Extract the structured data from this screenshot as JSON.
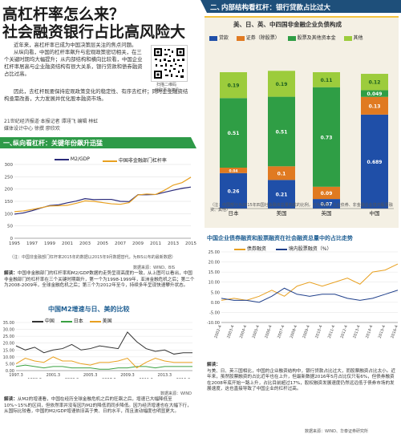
{
  "headline": {
    "line1": "高杠杆率怎么来？",
    "line2": "社会融资银行占比高风险大"
  },
  "intro": {
    "p1": "近年来，高杠杆率已成为中国决策层关注的焦点问题。",
    "p2": "从纵向看，中国的杠杆率飙升与宏观政策密切相关，在三个关键时期均大幅提升；从内部结构和横向比较看，中国企业杠杆率居高与企业融资结构有很大关系，银行贷款和债券融资占比过高。",
    "p3": "因此，去杠杆既要保持宏观政策变化的稳定性、有序去杠杆；同时企业融资结构亟需改善，大力发展并优化股本融资市场。",
    "byline1": "21世纪经济报道·本报记者 谭翊飞 编辑 林虹",
    "byline2": "媒体设计中心 徐撰 廖欣欢",
    "qr_caption1": "扫描二维码",
    "qr_caption2": "获取更多资讯"
  },
  "section1": {
    "number": "一、",
    "title": "纵向看杠杆：关键年份飙升迅猛",
    "chart": {
      "legend": [
        "M2/GDP",
        "中国非金融部门杠杆率"
      ],
      "x_ticks": [
        "1995",
        "1997",
        "1999",
        "2001",
        "2003",
        "2005",
        "2007",
        "2009",
        "2011",
        "2013",
        "2015"
      ],
      "y_ticks": [
        "0",
        "50",
        "100",
        "150",
        "200",
        "250",
        "300"
      ],
      "note": "（注：中国非金融部门杠杆率2015年的数据以2015年9月数据替代，为BIS公布的最新数据）",
      "source": "数据来源：WIND、BIS"
    },
    "explain_label": "解读：",
    "explain": "中国非金融部门的杠杆率和M2/GDP数据的走势呈现高度的一致，从上图可以看出，中国非金融部门的杠杆率在三个关键时期飙升，第一个为1998-1999年，亚洲金融危机之后；第二个为2008-2009年，全球金融危机之后；第三个为2012年至今，持续多年呈现快速攀升状态。"
  },
  "section1b": {
    "title": "中国M2增速与日、美的比较",
    "legend": [
      "中国",
      "日本",
      "美国"
    ],
    "x_ticks": [
      "1997.3",
      "1999.3",
      "2001.3",
      "2003.3",
      "2005.3",
      "2007.3",
      "2009.3",
      "2011.3",
      "2013.3",
      "2015.3"
    ],
    "y_ticks": [
      "0.00",
      "5.00",
      "10.00",
      "15.00",
      "20.00",
      "25.00",
      "30.00",
      "35.00"
    ],
    "source": "数据来源：WIND",
    "explain_label": "解读：",
    "explain": "从M2的增速看，中国在经历全球金融危机之后的狂飙之后，增速已大幅降低至10%~15%的区间，但依然率并没有因为M2的降低而同步降低。因为经济增速也在大幅下行，从国际比较看，中国的M2/GDP增速依旧高于美、日的水平，而且波动幅度也明显更大。"
  },
  "section2": {
    "number": "二、",
    "title": "内部结构看杠杆：银行贷款占比过大",
    "chart_title": "美、日、英、中四国非金融企业负债构成",
    "legend": [
      "贷款",
      "证券（除股票）",
      "股票及其他资本金",
      "其他"
    ],
    "note": "（注：中国部分为2015年四国社会融资总量构成的比例，分为贷款、企业债券、非金融企业境内股票融资、其他）",
    "explain_label": "解读：",
    "explain": "与美、日、英三国相比，中国的企业融资结构中，银行贷款占比过大，而股票融资占比太小。近年来，虽然股票融资的占比近年也在上升，但最新数据2016年5月占比仅只有6%，但债券融资在2008年底开始一路上升，占比目前超过17%，股权融资发展速度仍然远远低于债券市场的发展速度，这也直接导致了中国企业的杠杆过高。"
  },
  "section2b": {
    "title": "中国企业债券融资和股票融资在社会融资总量中的占比走势",
    "legend": [
      "债券融资",
      "境内股票融资（%）"
    ],
    "x_ticks": [
      "2002-4",
      "2003-4",
      "2004-4",
      "2005-4",
      "2006-4",
      "2007-4",
      "2008-4",
      "2009-4",
      "2010-4",
      "2011-4",
      "2012-4",
      "2013-4",
      "2014-4",
      "2015-4",
      "2016-4"
    ],
    "y_ticks": [
      "-10.00",
      "-5.00",
      "0.00",
      "5.00",
      "10.00",
      "15.00",
      "20.00",
      "25.00"
    ],
    "source": "数据来源：WIND、华泰证券研究所"
  },
  "chart_data": [
    {
      "type": "line",
      "title": "",
      "x": [
        1995,
        1996,
        1997,
        1998,
        1999,
        2000,
        2001,
        2002,
        2003,
        2004,
        2005,
        2006,
        2007,
        2008,
        2009,
        2010,
        2011,
        2012,
        2013,
        2014,
        2015
      ],
      "series": [
        {
          "name": "M2/GDP",
          "values": [
            98,
            103,
            112,
            123,
            133,
            136,
            144,
            151,
            161,
            157,
            158,
            158,
            150,
            149,
            177,
            177,
            178,
            187,
            195,
            203,
            208
          ]
        },
        {
          "name": "中国非金融部门杠杆率",
          "values": [
            108,
            111,
            117,
            124,
            131,
            132,
            134,
            142,
            152,
            150,
            145,
            140,
            138,
            145,
            176,
            180,
            178,
            195,
            216,
            226,
            248
          ]
        }
      ],
      "ylim": [
        0,
        300
      ]
    },
    {
      "type": "line",
      "title": "中国M2增速与日、美的比较",
      "x": [
        "1997.3",
        "1998.3",
        "1999.3",
        "2000.3",
        "2001.3",
        "2002.3",
        "2003.3",
        "2004.3",
        "2005.3",
        "2006.3",
        "2007.3",
        "2008.3",
        "2009.3",
        "2010.3",
        "2011.3",
        "2012.3",
        "2013.3",
        "2014.3",
        "2015.3",
        "2016.3"
      ],
      "series": [
        {
          "name": "中国",
          "values": [
            18,
            15,
            17,
            13,
            15,
            16,
            19,
            15,
            16,
            18,
            17,
            16,
            28,
            21,
            16,
            14,
            15,
            12,
            13,
            13
          ]
        },
        {
          "name": "日本",
          "values": [
            3,
            4,
            3,
            2,
            3,
            3,
            2,
            2,
            2,
            1,
            1,
            2,
            2,
            3,
            3,
            2,
            3,
            3,
            3,
            3
          ]
        },
        {
          "name": "美国",
          "values": [
            5,
            9,
            7,
            6,
            10,
            7,
            7,
            5,
            4,
            6,
            6,
            7,
            9,
            2,
            6,
            9,
            7,
            6,
            6,
            6
          ]
        }
      ],
      "ylim": [
        0,
        35
      ]
    },
    {
      "type": "bar",
      "title": "美、日、英、中四国非金融企业负债构成",
      "categories": [
        "日本",
        "美国",
        "英国",
        "中国"
      ],
      "series": [
        {
          "name": "贷款",
          "values": [
            0.26,
            0.21,
            0.07,
            0.689
          ]
        },
        {
          "name": "证券（除股票）",
          "values": [
            0.04,
            0.1,
            0.09,
            0.13
          ]
        },
        {
          "name": "股票及其他资本金",
          "values": [
            0.51,
            0.51,
            0.73,
            0.049
          ]
        },
        {
          "name": "其他",
          "values": [
            0.19,
            0.19,
            0.11,
            0.12
          ]
        }
      ],
      "ylim": [
        0,
        1.2
      ]
    },
    {
      "type": "line",
      "title": "中国企业债券融资和股票融资在社会融资总量中的占比走势",
      "x": [
        "2002-4",
        "2003-4",
        "2004-4",
        "2005-4",
        "2006-4",
        "2007-4",
        "2008-4",
        "2009-4",
        "2010-4",
        "2011-4",
        "2012-4",
        "2013-4",
        "2014-4",
        "2015-4",
        "2016-4"
      ],
      "series": [
        {
          "name": "债券融资",
          "values": [
            1,
            2,
            1,
            3,
            6,
            3,
            8,
            10,
            8,
            10,
            12,
            9,
            15,
            16,
            19
          ]
        },
        {
          "name": "境内股票融资（%）",
          "values": [
            2,
            1,
            1,
            0,
            3,
            7,
            4,
            3,
            4,
            4,
            2,
            1,
            2,
            4,
            6
          ]
        }
      ],
      "ylim": [
        -10,
        25
      ]
    }
  ],
  "colors": {
    "banner": "#1e4f7a",
    "green_banner": "#2e9a48",
    "loans": "#1f4fa8",
    "bonds": "#e07a21",
    "equity": "#2f9e45",
    "other": "#9ccc3c",
    "m2gdp": "#2a2a7a",
    "leverage": "#e8a020"
  }
}
